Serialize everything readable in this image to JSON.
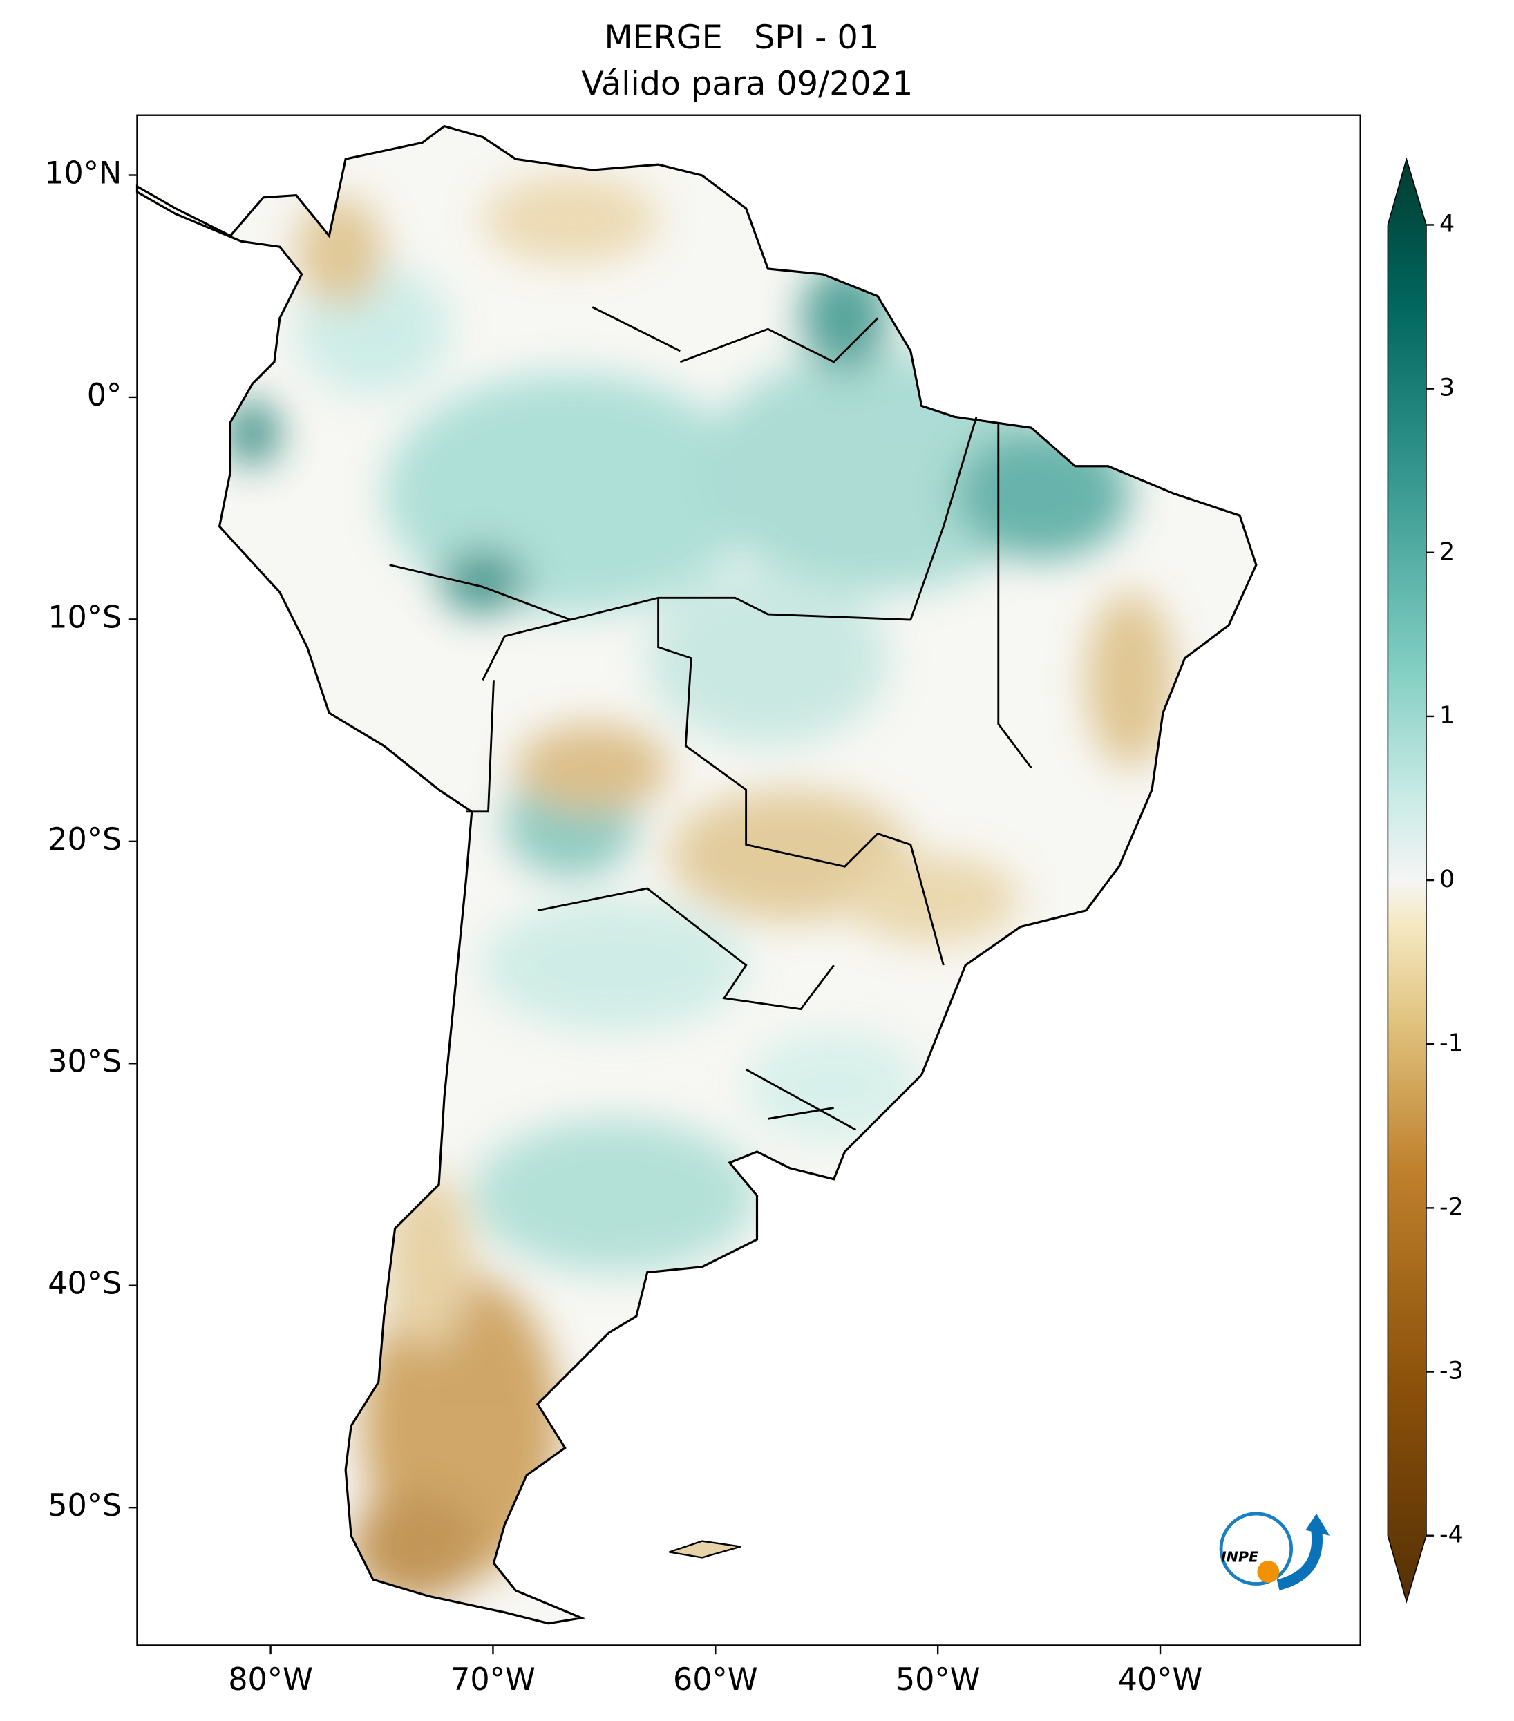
{
  "title": [
    "MERGE   SPI - 01",
    "Válido para 09/2021"
  ],
  "map": {
    "xlim": [
      -86,
      -31
    ],
    "ylim": [
      -56.2,
      12.7
    ],
    "xticks": [
      {
        "value": -80,
        "label": "80°W"
      },
      {
        "value": -70,
        "label": "70°W"
      },
      {
        "value": -60,
        "label": "60°W"
      },
      {
        "value": -50,
        "label": "50°W"
      },
      {
        "value": -40,
        "label": "40°W"
      }
    ],
    "yticks": [
      {
        "value": 10,
        "label": "10°N"
      },
      {
        "value": 0,
        "label": "0°"
      },
      {
        "value": -10,
        "label": "10°S"
      },
      {
        "value": -20,
        "label": "20°S"
      },
      {
        "value": -30,
        "label": "30°S"
      },
      {
        "value": -40,
        "label": "40°S"
      },
      {
        "value": -50,
        "label": "50°S"
      }
    ]
  },
  "colorbar": {
    "lim": [
      -4,
      4
    ],
    "ticks": [
      -4,
      -3,
      -2,
      -1,
      0,
      1,
      2,
      3,
      4
    ]
  },
  "logo_text": "INPE"
}
